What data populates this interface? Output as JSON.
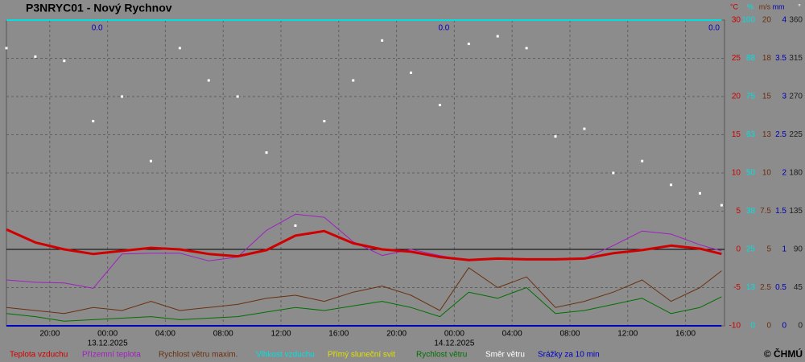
{
  "chart_data": {
    "type": "line",
    "title": "P3NRYC01 - Nový Rychnov",
    "copyright": "© ČHMÚ",
    "xlim": [
      -7,
      42.7
    ],
    "xticks": [
      {
        "value": -4,
        "label": "20:00"
      },
      {
        "value": 0,
        "label": "00:00"
      },
      {
        "value": 4,
        "label": "04:00"
      },
      {
        "value": 8,
        "label": "08:00"
      },
      {
        "value": 12,
        "label": "12:00"
      },
      {
        "value": 16,
        "label": "16:00"
      },
      {
        "value": 20,
        "label": "20:00"
      },
      {
        "value": 24,
        "label": "00:00"
      },
      {
        "value": 28,
        "label": "04:00"
      },
      {
        "value": 32,
        "label": "08:00"
      },
      {
        "value": 36,
        "label": "12:00"
      },
      {
        "value": 40,
        "label": "16:00"
      }
    ],
    "date_labels": [
      {
        "value": 0,
        "label": "13.12.2025"
      },
      {
        "value": 24,
        "label": "14.12.2025"
      }
    ],
    "precipitation_totals": [
      {
        "value": 0,
        "label": "0.0"
      },
      {
        "value": 0,
        "label": "0.0"
      },
      {
        "value": 0,
        "label": "0.0"
      }
    ],
    "grid": true,
    "zero_line": 0,
    "axes": [
      {
        "unit": "°C",
        "color": "#cc0000",
        "lim": [
          -10,
          30
        ],
        "ticks": [
          30,
          25,
          20,
          15,
          10,
          5,
          0,
          -5,
          -10
        ]
      },
      {
        "unit": "%",
        "color": "#00e0e0",
        "lim": [
          0,
          100
        ],
        "ticks": [
          100,
          {
            "value": 87.5,
            "label": "88"
          },
          75,
          {
            "value": 62.5,
            "label": "63"
          },
          50,
          {
            "value": 37.5,
            "label": "38"
          },
          25,
          {
            "value": 12.5,
            "label": "13"
          },
          0
        ]
      },
      {
        "unit": "m/s",
        "color": "#6a3010",
        "lim": [
          0,
          20
        ],
        "ticks": [
          20,
          {
            "value": 17.5,
            "label": "18"
          },
          15,
          {
            "value": 12.5,
            "label": "13"
          },
          10,
          7.5,
          5,
          2.5,
          0
        ]
      },
      {
        "unit": "mm",
        "color": "#0000b0",
        "lim": [
          0,
          4
        ],
        "ticks": [
          4,
          3.5,
          3,
          2.5,
          2,
          1.5,
          1,
          0.5,
          0
        ]
      },
      {
        "unit": "°",
        "color": "#ffffff",
        "lim": [
          0,
          360
        ],
        "ticks": [
          360,
          315,
          270,
          225,
          180,
          135,
          90,
          45,
          0
        ]
      }
    ],
    "x": [
      -7,
      -5,
      -3,
      -1,
      1,
      3,
      5,
      7,
      9,
      11,
      13,
      15,
      17,
      19,
      21,
      23,
      25,
      27,
      29,
      31,
      33,
      35,
      37,
      39,
      41,
      42.5
    ],
    "series": [
      {
        "name": "Teplota vzduchu",
        "color": "#d00000",
        "axis": 0,
        "width": 3,
        "values": [
          2.6,
          0.9,
          0,
          -0.6,
          -0.2,
          0.2,
          0,
          -0.6,
          -0.9,
          -0.1,
          1.8,
          2.4,
          0.8,
          0,
          -0.3,
          -1.0,
          -1.4,
          -1.2,
          -1.3,
          -1.3,
          -1.2,
          -0.5,
          -0.1,
          0.5,
          0.1,
          -0.6
        ]
      },
      {
        "name": "Přízemní teplota",
        "color": "#a020c0",
        "axis": 0,
        "width": 1,
        "values": [
          -4,
          -4.3,
          -4.4,
          -5.1,
          -0.6,
          -0.5,
          -0.5,
          -1.5,
          -1.0,
          2.5,
          4.6,
          4.2,
          1.0,
          -0.8,
          0,
          -0.8,
          -1.5,
          -1.2,
          -1.3,
          -1.3,
          -1.2,
          0.5,
          2.4,
          2.0,
          0.6,
          -0.2
        ]
      },
      {
        "name": "Rychlost větru maxim.",
        "color": "#6a3010",
        "axis": 2,
        "width": 1,
        "values": [
          1.2,
          1.0,
          0.8,
          1.2,
          1.0,
          1.6,
          1.0,
          1.2,
          1.4,
          1.8,
          2.0,
          1.6,
          2.2,
          2.6,
          2.0,
          1.0,
          3.8,
          2.5,
          3.2,
          1.2,
          1.6,
          2.2,
          3.0,
          1.6,
          2.5,
          3.6
        ]
      },
      {
        "name": "Vlhkost vzduchu",
        "color": "#00e0e0",
        "axis": 1,
        "width": 2,
        "values": [
          100,
          100,
          100,
          100,
          100,
          100,
          100,
          100,
          100,
          100,
          100,
          100,
          100,
          100,
          100,
          100,
          100,
          100,
          100,
          100,
          100,
          100,
          100,
          100,
          100,
          100
        ]
      },
      {
        "name": "Přímý sluneční svit",
        "color": "#e0e000",
        "axis": 1,
        "width": 2,
        "values": [
          0,
          0,
          0,
          0,
          0,
          0,
          0,
          0,
          0,
          0,
          0,
          0,
          0,
          0,
          0,
          0,
          0,
          0,
          0,
          0,
          0,
          0,
          0,
          0,
          0,
          0
        ]
      },
      {
        "name": "Rychlost větru",
        "color": "#007000",
        "axis": 2,
        "width": 1,
        "values": [
          0.8,
          0.6,
          0.3,
          0.4,
          0.5,
          0.6,
          0.4,
          0.5,
          0.6,
          0.9,
          1.2,
          1.0,
          1.3,
          1.6,
          1.2,
          0.6,
          2.2,
          1.8,
          2.5,
          0.8,
          1.0,
          1.4,
          1.8,
          0.8,
          1.2,
          1.9
        ]
      },
      {
        "name": "Směr větru",
        "color": "#ffffff",
        "axis": 4,
        "marker": "dot",
        "values": [
          327,
          317,
          312,
          241,
          270,
          194,
          327,
          289,
          270,
          204,
          118,
          241,
          289,
          336,
          298,
          260,
          332,
          341,
          327,
          223,
          232,
          180,
          194,
          166,
          156,
          142
        ]
      },
      {
        "name": "Srážky za 10 min",
        "color": "#0000c0",
        "axis": 3,
        "width": 2,
        "values": [
          0,
          0,
          0,
          0,
          0,
          0,
          0,
          0,
          0,
          0,
          0,
          0,
          0,
          0,
          0,
          0,
          0,
          0,
          0,
          0,
          0,
          0,
          0,
          0,
          0,
          0
        ]
      }
    ]
  }
}
